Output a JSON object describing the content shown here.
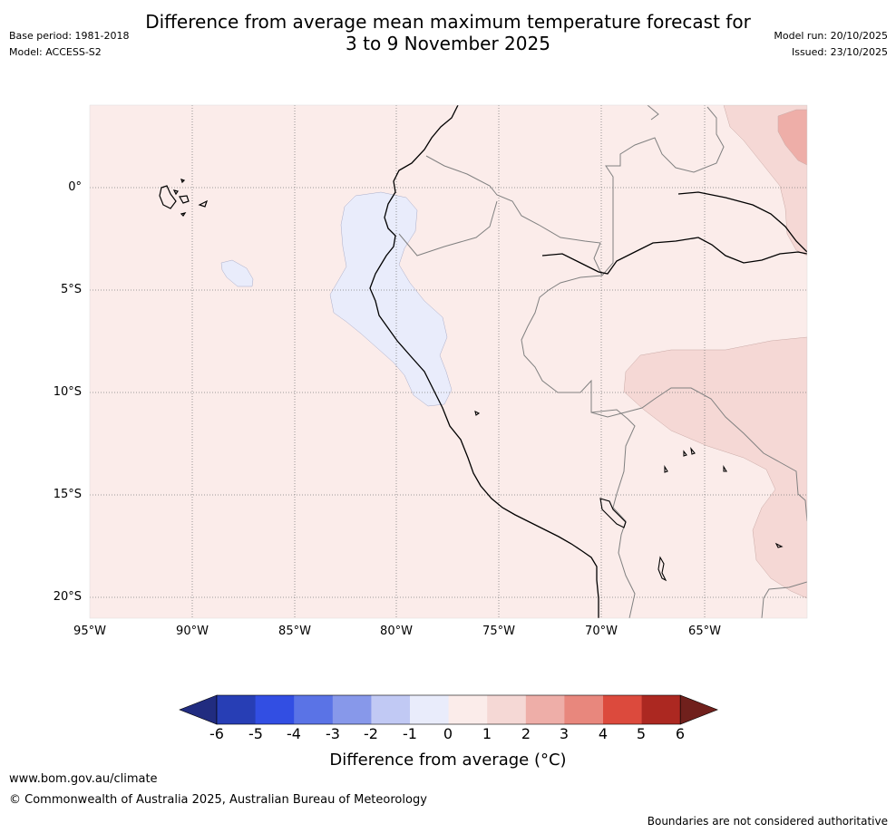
{
  "header": {
    "title_line1": "Difference from average mean maximum temperature forecast for",
    "title_line2": "3 to 9 November 2025",
    "base_period": "Base period: 1981-2018",
    "model": "Model: ACCESS-S2",
    "model_run": "Model run: 20/10/2025",
    "issued": "Issued: 23/10/2025"
  },
  "map": {
    "region": "Western South America (Ecuador, Peru, Bolivia, Brazil)",
    "lat_labels": [
      "0°",
      "5°S",
      "10°S",
      "15°S",
      "20°S"
    ],
    "lon_labels": [
      "95°W",
      "90°W",
      "85°W",
      "80°W",
      "75°W",
      "70°W",
      "65°W"
    ],
    "background_anomaly": "0 to 1",
    "colors": {
      "ocean_land_0_1": "#fbecea",
      "negative_0_to_-1": "#e9ecfb",
      "positive_1_2": "#f5d8d5",
      "positive_2_3": "#eeaea8",
      "coastline": "#000000",
      "border": "#808080",
      "gridline": "#7f7f7f"
    }
  },
  "colorbar": {
    "title": "Difference from average (°C)",
    "labels": [
      "-6",
      "-5",
      "-4",
      "-3",
      "-2",
      "-1",
      "0",
      "1",
      "2",
      "3",
      "4",
      "5",
      "6"
    ],
    "colors": [
      "#212c80",
      "#273eb5",
      "#324ee3",
      "#5a73e6",
      "#8798ea",
      "#c1c9f4",
      "#e9ecfb",
      "#fbecea",
      "#f5d8d5",
      "#eeaea8",
      "#e8877d",
      "#dc4a3d",
      "#ac2821",
      "#70201c"
    ]
  },
  "footer": {
    "url": "www.bom.gov.au/climate",
    "copyright": "© Commonwealth of Australia 2025, Australian Bureau of Meteorology",
    "note": "Boundaries are not considered authoritative"
  }
}
